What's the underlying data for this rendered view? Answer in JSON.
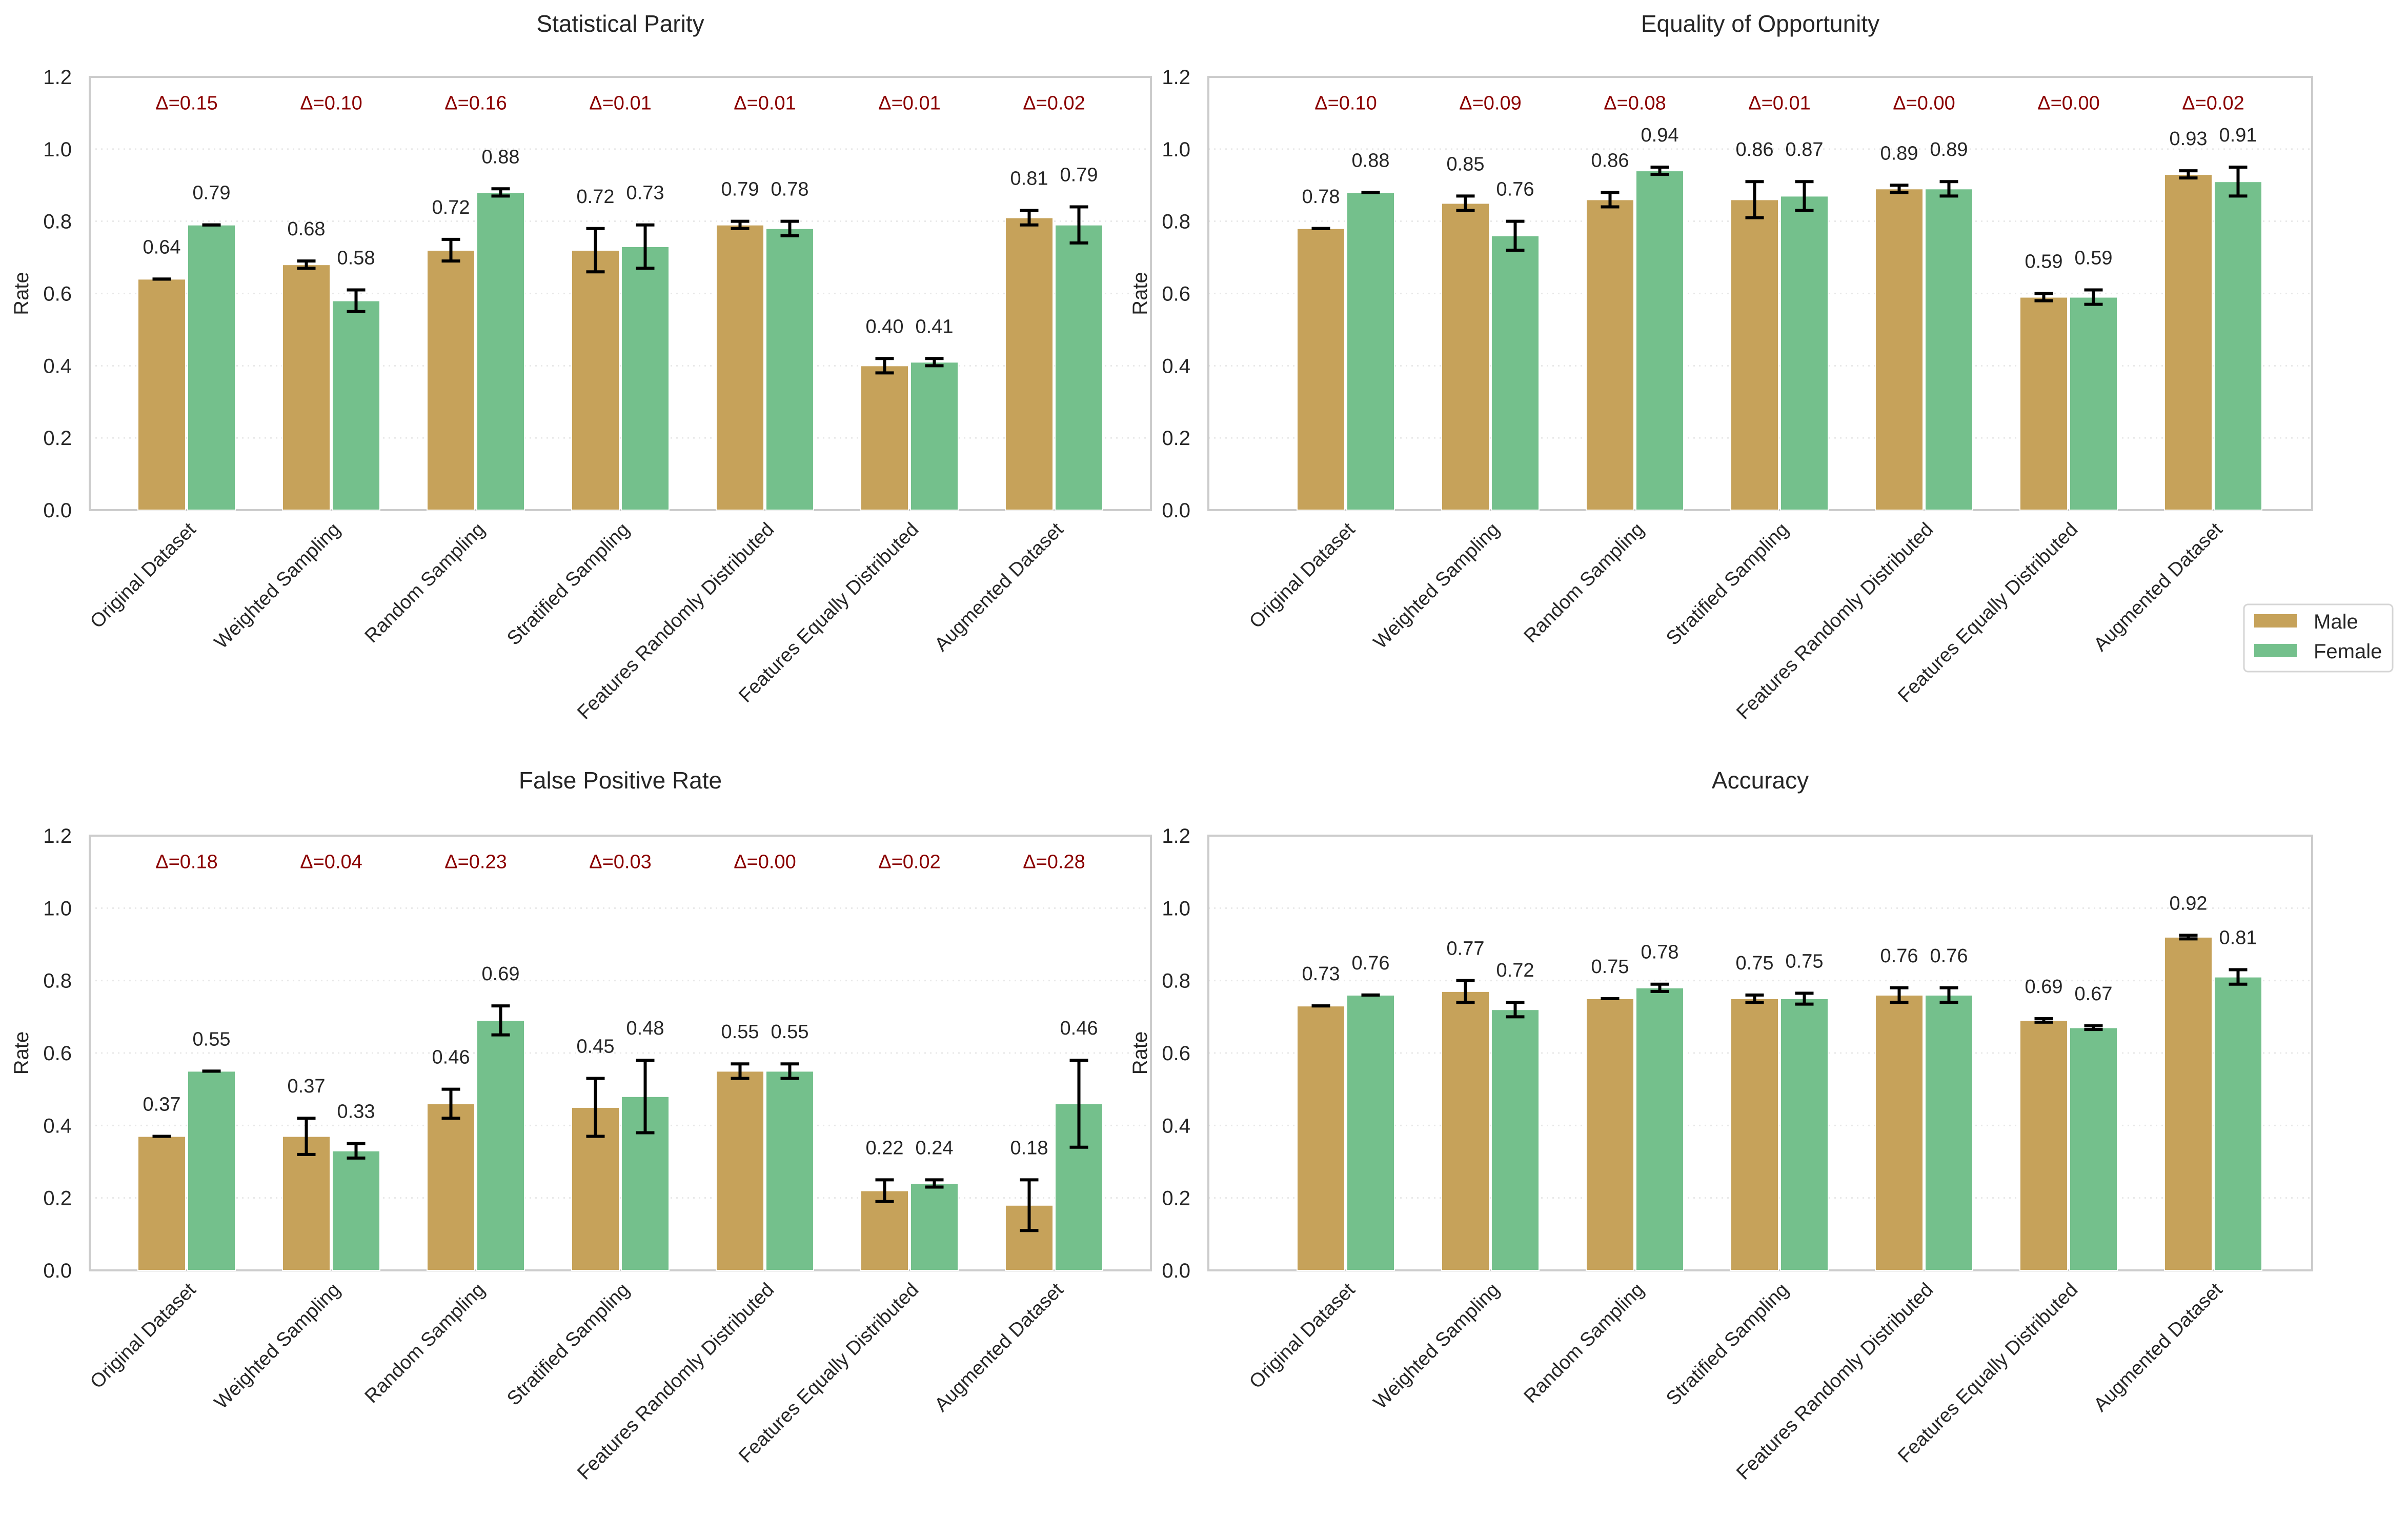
{
  "figure": {
    "legend": {
      "placement": "right-middle",
      "entries": [
        {
          "label": "Male",
          "color": "#c6a25a"
        },
        {
          "label": "Female",
          "color": "#74c08c"
        }
      ]
    },
    "colors": {
      "male": "#c6a25a",
      "female": "#74c08c",
      "delta_text": "#8b0000",
      "error_bar": "#000000",
      "grid": "#e8e8e8",
      "axes_border": "#cccccc"
    }
  },
  "chart_data": [
    {
      "type": "bar",
      "title": "Statistical Parity",
      "xlabel": "",
      "ylabel": "Rate",
      "ylim": [
        0,
        1.2
      ],
      "yticks": [
        "0.0",
        "0.2",
        "0.4",
        "0.6",
        "0.8",
        "1.0",
        "1.2"
      ],
      "grid": true,
      "categories": [
        "Original Dataset",
        "Weighted Sampling",
        "Random Sampling",
        "Stratified Sampling",
        "Features Randomly Distributed",
        "Features Equally Distributed",
        "Augmented Dataset"
      ],
      "series": [
        {
          "name": "Male",
          "values": [
            0.64,
            0.68,
            0.72,
            0.72,
            0.79,
            0.4,
            0.81
          ],
          "errors": [
            0.0,
            0.01,
            0.03,
            0.06,
            0.01,
            0.02,
            0.02
          ]
        },
        {
          "name": "Female",
          "values": [
            0.79,
            0.58,
            0.88,
            0.73,
            0.78,
            0.41,
            0.79
          ],
          "errors": [
            0.0,
            0.03,
            0.01,
            0.06,
            0.02,
            0.01,
            0.05
          ]
        }
      ],
      "deltas": [
        "Δ=0.15",
        "Δ=0.10",
        "Δ=0.16",
        "Δ=0.01",
        "Δ=0.01",
        "Δ=0.01",
        "Δ=0.02"
      ]
    },
    {
      "type": "bar",
      "title": "Equality of Opportunity",
      "xlabel": "",
      "ylabel": "Rate",
      "ylim": [
        0,
        1.2
      ],
      "yticks": [
        "0.0",
        "0.2",
        "0.4",
        "0.6",
        "0.8",
        "1.0",
        "1.2"
      ],
      "grid": true,
      "categories": [
        "Original Dataset",
        "Weighted Sampling",
        "Random Sampling",
        "Stratified Sampling",
        "Features Randomly Distributed",
        "Features Equally Distributed",
        "Augmented Dataset"
      ],
      "series": [
        {
          "name": "Male",
          "values": [
            0.78,
            0.85,
            0.86,
            0.86,
            0.89,
            0.59,
            0.93
          ],
          "errors": [
            0.0,
            0.02,
            0.02,
            0.05,
            0.01,
            0.01,
            0.01
          ]
        },
        {
          "name": "Female",
          "values": [
            0.88,
            0.76,
            0.94,
            0.87,
            0.89,
            0.59,
            0.91
          ],
          "errors": [
            0.0,
            0.04,
            0.01,
            0.04,
            0.02,
            0.02,
            0.04
          ]
        }
      ],
      "deltas": [
        "Δ=0.10",
        "Δ=0.09",
        "Δ=0.08",
        "Δ=0.01",
        "Δ=0.00",
        "Δ=0.00",
        "Δ=0.02"
      ]
    },
    {
      "type": "bar",
      "title": "False Positive Rate",
      "xlabel": "",
      "ylabel": "Rate",
      "ylim": [
        0,
        1.2
      ],
      "yticks": [
        "0.0",
        "0.2",
        "0.4",
        "0.6",
        "0.8",
        "1.0",
        "1.2"
      ],
      "grid": true,
      "categories": [
        "Original Dataset",
        "Weighted Sampling",
        "Random Sampling",
        "Stratified Sampling",
        "Features Randomly Distributed",
        "Features Equally Distributed",
        "Augmented Dataset"
      ],
      "series": [
        {
          "name": "Male",
          "values": [
            0.37,
            0.37,
            0.46,
            0.45,
            0.55,
            0.22,
            0.18
          ],
          "errors": [
            0.0,
            0.05,
            0.04,
            0.08,
            0.02,
            0.03,
            0.07
          ]
        },
        {
          "name": "Female",
          "values": [
            0.55,
            0.33,
            0.69,
            0.48,
            0.55,
            0.24,
            0.46
          ],
          "errors": [
            0.0,
            0.02,
            0.04,
            0.1,
            0.02,
            0.01,
            0.12
          ]
        }
      ],
      "deltas": [
        "Δ=0.18",
        "Δ=0.04",
        "Δ=0.23",
        "Δ=0.03",
        "Δ=0.00",
        "Δ=0.02",
        "Δ=0.28"
      ]
    },
    {
      "type": "bar",
      "title": "Accuracy",
      "xlabel": "",
      "ylabel": "Rate",
      "ylim": [
        0,
        1.2
      ],
      "yticks": [
        "0.0",
        "0.2",
        "0.4",
        "0.6",
        "0.8",
        "1.0",
        "1.2"
      ],
      "grid": true,
      "categories": [
        "Original Dataset",
        "Weighted Sampling",
        "Random Sampling",
        "Stratified Sampling",
        "Features Randomly Distributed",
        "Features Equally Distributed",
        "Augmented Dataset"
      ],
      "series": [
        {
          "name": "Male",
          "values": [
            0.73,
            0.77,
            0.75,
            0.75,
            0.76,
            0.69,
            0.92
          ],
          "errors": [
            0.0,
            0.03,
            0.0,
            0.01,
            0.02,
            0.005,
            0.005
          ]
        },
        {
          "name": "Female",
          "values": [
            0.76,
            0.72,
            0.78,
            0.75,
            0.76,
            0.67,
            0.81
          ],
          "errors": [
            0.0,
            0.02,
            0.01,
            0.015,
            0.02,
            0.005,
            0.02
          ]
        }
      ],
      "deltas": [
        "",
        "",
        "",
        "",
        "",
        "",
        ""
      ]
    }
  ]
}
